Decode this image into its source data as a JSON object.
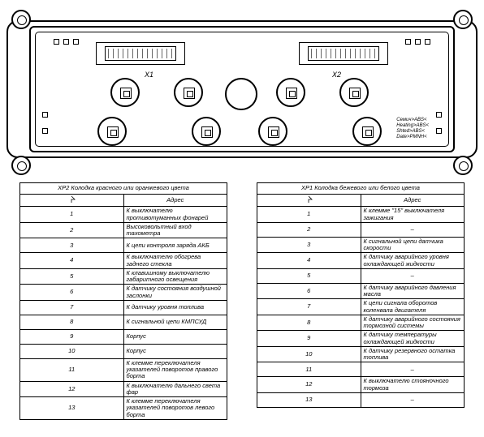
{
  "diagram": {
    "connector1_label": "X1",
    "connector2_label": "X2",
    "info_lines": [
      "Семич>ABS<",
      "Heating>ABS<",
      "Shted>ABS<",
      "Date>PMNH<"
    ]
  },
  "left_table": {
    "title": "ХР2 Колодка красного или оранжевого цвета",
    "addr_header": "Адрес",
    "rows": [
      {
        "n": "1",
        "desc": "К выключателю противотуманных фонарей"
      },
      {
        "n": "2",
        "desc": "Высоковольтный вход тахометра"
      },
      {
        "n": "3",
        "desc": "К цепи контроля заряда АКБ"
      },
      {
        "n": "4",
        "desc": "К выключателю обогрева заднего стекла"
      },
      {
        "n": "5",
        "desc": "К клавишному выключателю габаритного освещения"
      },
      {
        "n": "6",
        "desc": "К датчику состояния воздушной заслонки"
      },
      {
        "n": "7",
        "desc": "К датчику уровня топлива"
      },
      {
        "n": "8",
        "desc": "К сигнальной цепи КМПСУД"
      },
      {
        "n": "9",
        "desc": "Корпус"
      },
      {
        "n": "10",
        "desc": "Корпус"
      },
      {
        "n": "11",
        "desc": "К клемме переключателя указателей поворотов правого борта"
      },
      {
        "n": "12",
        "desc": "К выключателю дальнего света фар"
      },
      {
        "n": "13",
        "desc": "К клемме переключателя указателей поворотов левого борта"
      }
    ]
  },
  "right_table": {
    "title": "ХР1 Колодка бежевого или белого цвета",
    "addr_header": "Адрес",
    "rows": [
      {
        "n": "1",
        "desc": "К клемме \"15\" выключателя зажигания"
      },
      {
        "n": "2",
        "desc": "–",
        "dash": true
      },
      {
        "n": "3",
        "desc": "К сигнальной цепи датчика скорости"
      },
      {
        "n": "4",
        "desc": "К датчику аварийного уровня охлаждающей жидкости"
      },
      {
        "n": "5",
        "desc": "–",
        "dash": true
      },
      {
        "n": "6",
        "desc": "К датчику аварийного давления масла"
      },
      {
        "n": "7",
        "desc": "К цепи сигнала оборотов коленвала двигателя"
      },
      {
        "n": "8",
        "desc": "К датчику аварийного состояния тормозной системы"
      },
      {
        "n": "9",
        "desc": "К датчику температуры охлаждающей жидкости"
      },
      {
        "n": "10",
        "desc": "К датчику резервного остатка топлива"
      },
      {
        "n": "11",
        "desc": "–",
        "dash": true
      },
      {
        "n": "12",
        "desc": "К выключателю стояночного тормоза"
      },
      {
        "n": "13",
        "desc": "–",
        "dash": true
      }
    ]
  },
  "colors": {
    "stroke": "#000000",
    "background": "#ffffff"
  }
}
